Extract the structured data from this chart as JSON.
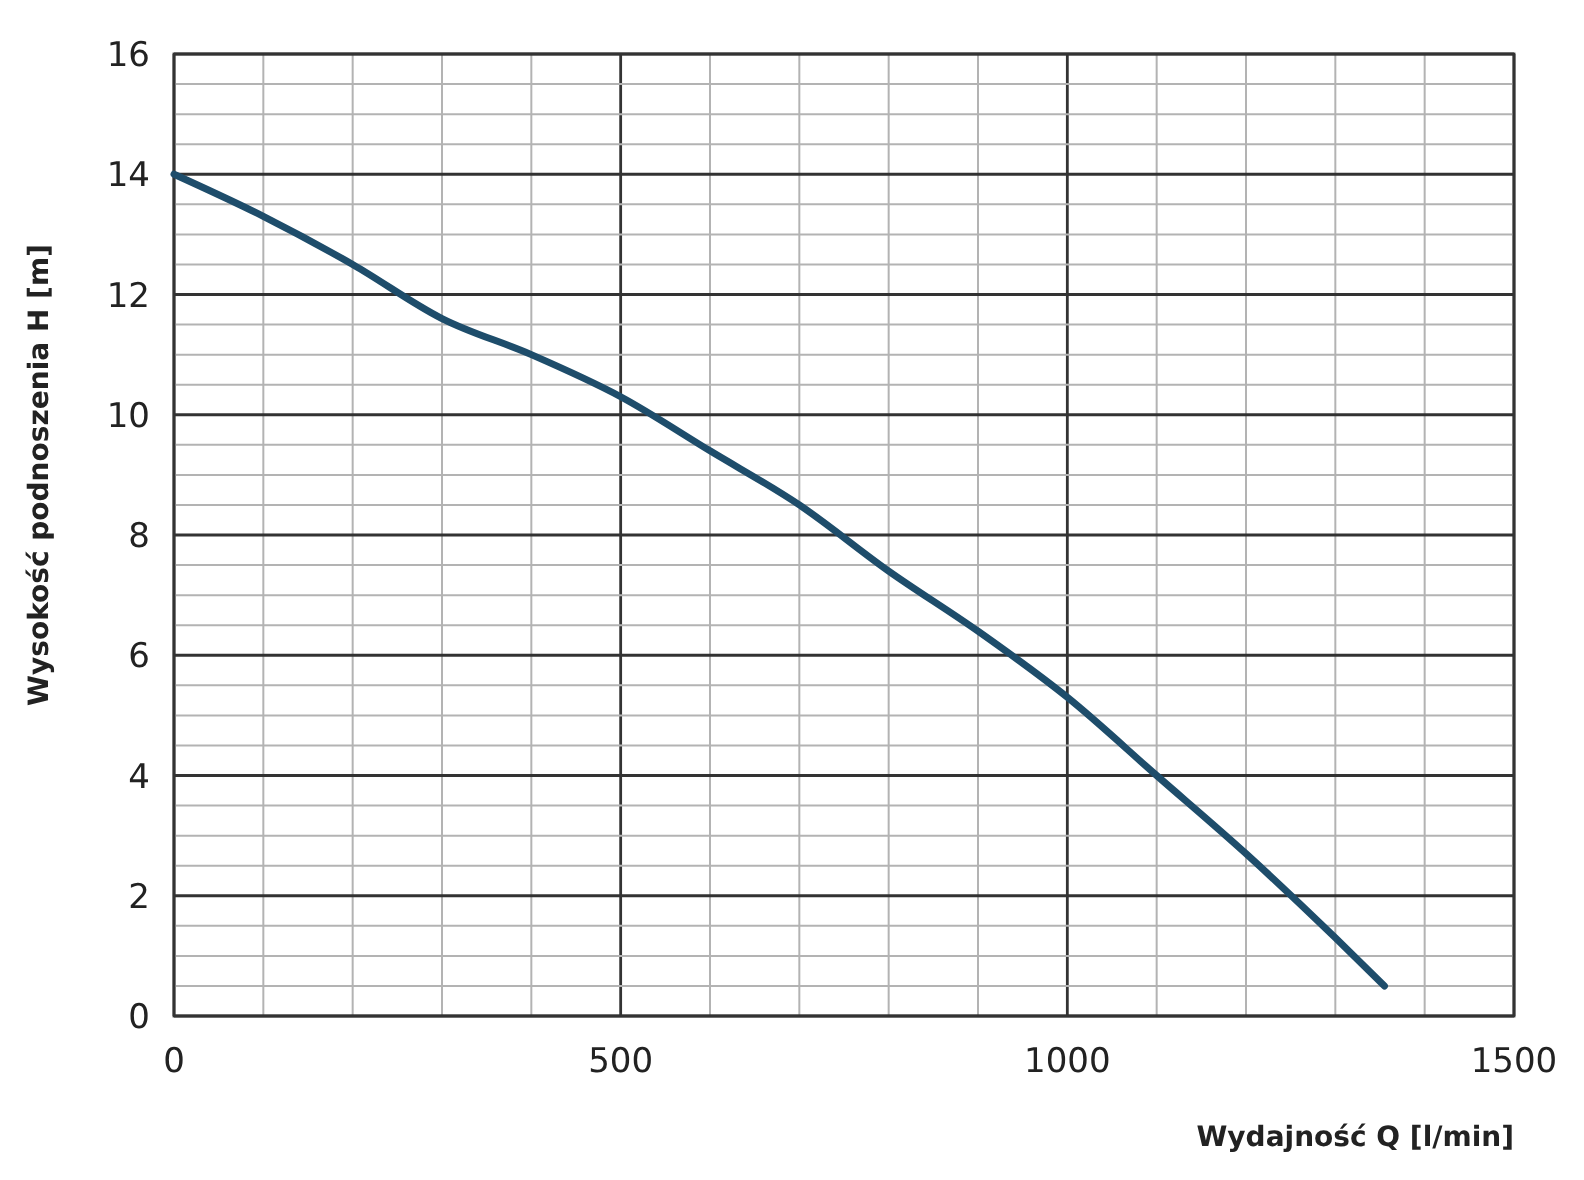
{
  "chart_data": {
    "type": "line",
    "xlabel": "Wydajność Q [l/min]",
    "ylabel": "Wysokość podnoszenia H [m]",
    "x": [
      0,
      100,
      200,
      300,
      400,
      500,
      600,
      700,
      800,
      900,
      1000,
      1100,
      1200,
      1300,
      1355
    ],
    "series": [
      {
        "color": "#1e4d6b",
        "values": [
          14,
          13.3,
          12.5,
          11.6,
          11.0,
          10.3,
          9.4,
          8.5,
          7.4,
          6.4,
          5.3,
          4.0,
          2.7,
          1.3,
          0.5
        ]
      }
    ],
    "xlim": [
      0,
      1500
    ],
    "xticks": [
      0,
      {
        "value": 100,
        "label": null
      },
      {
        "value": 200,
        "label": null
      },
      {
        "value": 300,
        "label": null
      },
      {
        "value": 400,
        "label": null
      },
      500,
      {
        "value": 600,
        "label": null
      },
      {
        "value": 700,
        "label": null
      },
      {
        "value": 800,
        "label": null
      },
      {
        "value": 900,
        "label": null
      },
      1000,
      {
        "value": 1100,
        "label": null
      },
      {
        "value": 1200,
        "label": null
      },
      {
        "value": 1300,
        "label": null
      },
      {
        "value": 1400,
        "label": null
      },
      1500
    ],
    "ylim": [
      0,
      16
    ],
    "yticks": [
      0,
      {
        "value": 0.5,
        "label": null
      },
      {
        "value": 1,
        "label": null
      },
      {
        "value": 1.5,
        "label": null
      },
      2,
      {
        "value": 2.5,
        "label": null
      },
      {
        "value": 3,
        "label": null
      },
      {
        "value": 3.5,
        "label": null
      },
      4,
      {
        "value": 4.5,
        "label": null
      },
      {
        "value": 5,
        "label": null
      },
      {
        "value": 5.5,
        "label": null
      },
      6,
      {
        "value": 6.5,
        "label": null
      },
      {
        "value": 7,
        "label": null
      },
      {
        "value": 7.5,
        "label": null
      },
      8,
      {
        "value": 8.5,
        "label": null
      },
      {
        "value": 9,
        "label": null
      },
      {
        "value": 9.5,
        "label": null
      },
      10,
      {
        "value": 10.5,
        "label": null
      },
      {
        "value": 11,
        "label": null
      },
      {
        "value": 11.5,
        "label": null
      },
      12,
      {
        "value": 12.5,
        "label": null
      },
      {
        "value": 13,
        "label": null
      },
      {
        "value": 13.5,
        "label": null
      },
      14,
      {
        "value": 14.5,
        "label": null
      },
      {
        "value": 15,
        "label": null
      },
      {
        "value": 15.5,
        "label": null
      },
      16
    ],
    "grid": true,
    "marker": "none",
    "line_style": "solid"
  }
}
